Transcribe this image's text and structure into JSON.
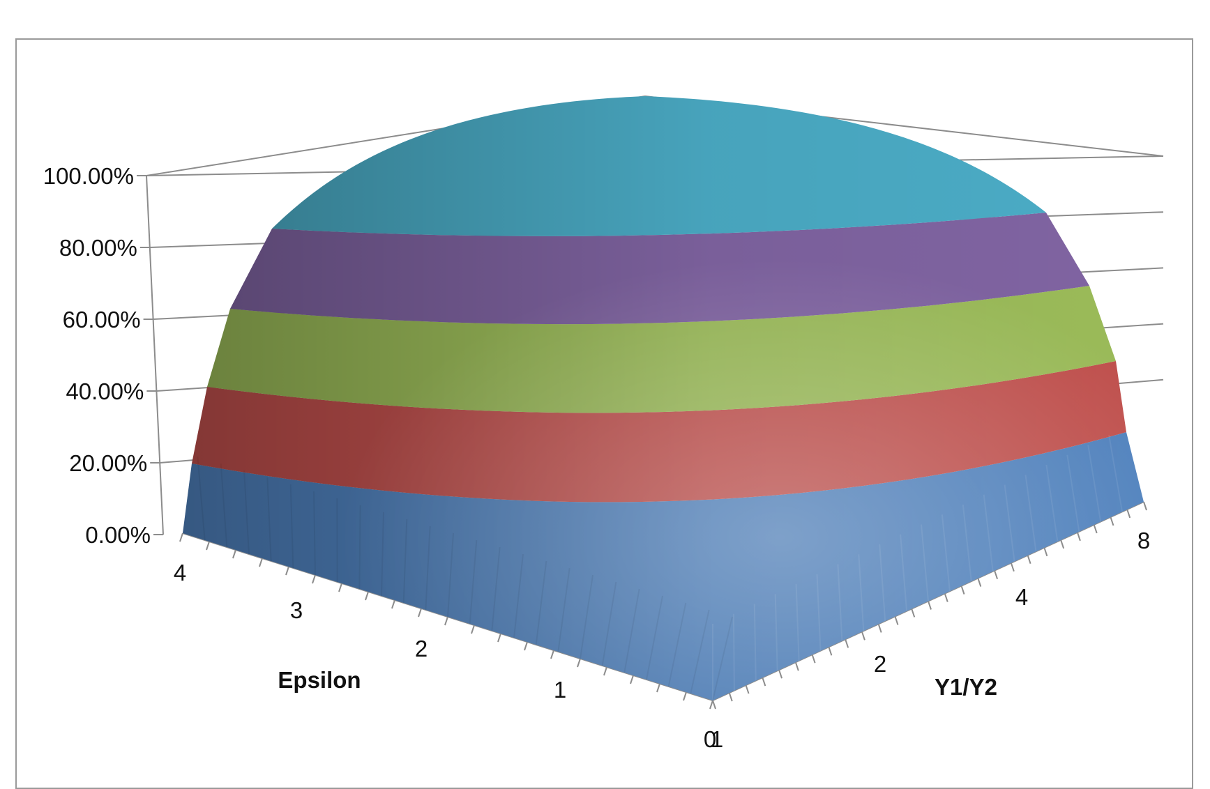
{
  "chart_data": {
    "type": "surface",
    "title": "",
    "z_axis": {
      "ticks": [
        "0.00%",
        "20.00%",
        "40.00%",
        "60.00%",
        "80.00%",
        "100.00%"
      ],
      "range": [
        0,
        1
      ]
    },
    "x_axis": {
      "label": "Epsilon",
      "ticks": [
        "4",
        "3",
        "2",
        "1",
        "0"
      ]
    },
    "y_axis": {
      "label": "Y1/Y2",
      "ticks": [
        "1",
        "2",
        "4",
        "8"
      ]
    },
    "bands": [
      {
        "range": [
          "0%",
          "20%"
        ],
        "color": "#4f81bd"
      },
      {
        "range": [
          "20%",
          "40%"
        ],
        "color": "#c0504d"
      },
      {
        "range": [
          "40%",
          "60%"
        ],
        "color": "#9bbb59"
      },
      {
        "range": [
          "60%",
          "80%"
        ],
        "color": "#8064a2"
      },
      {
        "range": [
          "80%",
          "100%"
        ],
        "color": "#4bacc6"
      }
    ],
    "grid": true,
    "legend": "none"
  }
}
